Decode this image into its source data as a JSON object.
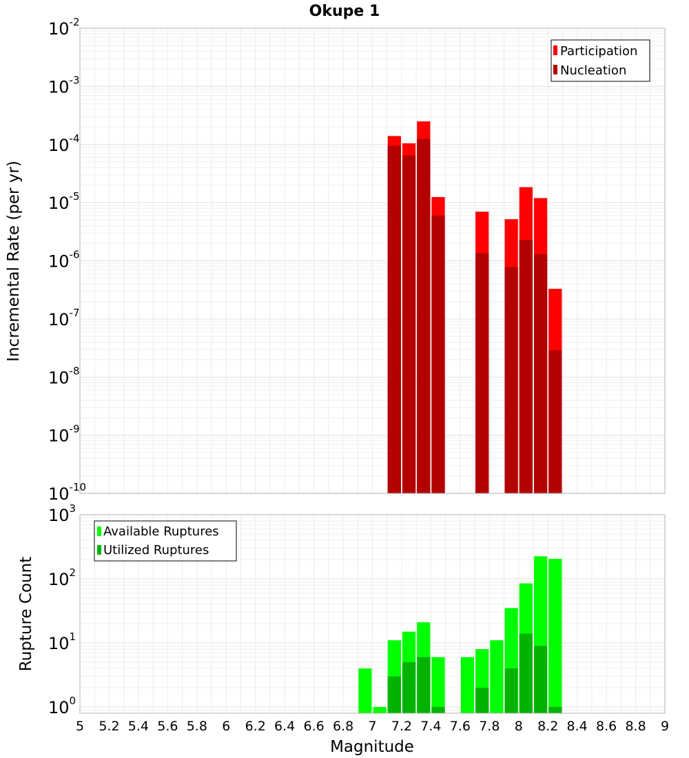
{
  "chart_data": [
    {
      "type": "bar",
      "title": "Okupe 1",
      "xlabel": "Magnitude",
      "ylabel": "Incremental Rate (per yr)",
      "yscale": "log",
      "xlim": [
        5,
        9
      ],
      "ylim": [
        1e-10,
        0.01
      ],
      "y_ticks": [
        {
          "base": "10",
          "exp": "-2"
        },
        {
          "base": "10",
          "exp": "-3"
        },
        {
          "base": "10",
          "exp": "-4"
        },
        {
          "base": "10",
          "exp": "-5"
        },
        {
          "base": "10",
          "exp": "-6"
        },
        {
          "base": "10",
          "exp": "-7"
        },
        {
          "base": "10",
          "exp": "-8"
        },
        {
          "base": "10",
          "exp": "-9"
        },
        {
          "base": "10",
          "exp": "-10"
        }
      ],
      "grid": true,
      "legend_position": "top-right",
      "x": [
        7.15,
        7.25,
        7.35,
        7.45,
        7.75,
        7.95,
        8.05,
        8.15,
        8.25
      ],
      "series": [
        {
          "name": "Participation",
          "color": "#ff0000",
          "values": [
            0.00014,
            0.000105,
            0.00025,
            1.25e-05,
            7e-06,
            5.2e-06,
            1.85e-05,
            1.2e-05,
            3.3e-07
          ]
        },
        {
          "name": "Nucleation",
          "color": "#b30000",
          "values": [
            9.5e-05,
            6.5e-05,
            0.000125,
            6e-06,
            1.35e-06,
            7.8e-07,
            2.3e-06,
            1.3e-06,
            2.9e-08
          ]
        }
      ]
    },
    {
      "type": "bar",
      "xlabel": "Magnitude",
      "ylabel": "Rupture Count",
      "yscale": "log",
      "xlim": [
        5,
        9
      ],
      "ylim": [
        0.8,
        1000
      ],
      "y_ticks": [
        {
          "base": "10",
          "exp": "3"
        },
        {
          "base": "10",
          "exp": "2"
        },
        {
          "base": "10",
          "exp": "1"
        },
        {
          "base": "10",
          "exp": "0"
        }
      ],
      "x_ticks": [
        "5",
        "5.2",
        "5.4",
        "5.6",
        "5.8",
        "6",
        "6.2",
        "6.4",
        "6.6",
        "6.8",
        "7",
        "7.2",
        "7.4",
        "7.6",
        "7.8",
        "8",
        "8.2",
        "8.4",
        "8.6",
        "8.8",
        "9"
      ],
      "grid": true,
      "legend_position": "top-left",
      "x": [
        6.95,
        7.05,
        7.15,
        7.25,
        7.35,
        7.45,
        7.65,
        7.75,
        7.85,
        7.95,
        8.05,
        8.15,
        8.25
      ],
      "series": [
        {
          "name": "Available Ruptures",
          "color": "#00ff00",
          "values": [
            4,
            1,
            11,
            15,
            21,
            6,
            6,
            8,
            11,
            35,
            85,
            225,
            205
          ]
        },
        {
          "name": "Utilized Ruptures",
          "color": "#00b300",
          "values": [
            null,
            null,
            3,
            5,
            6,
            1,
            null,
            2,
            null,
            4,
            14,
            9,
            1
          ]
        }
      ]
    }
  ]
}
